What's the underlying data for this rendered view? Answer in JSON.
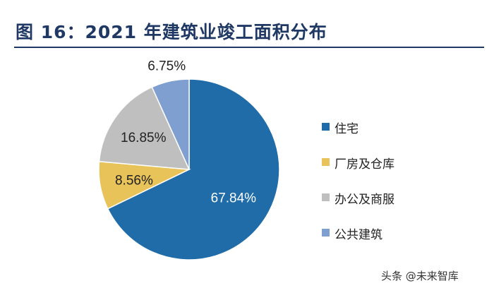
{
  "chart_data": {
    "type": "pie",
    "title": "图 16：2021 年建筑业竣工面积分布",
    "categories": [
      "住宅",
      "厂房及仓库",
      "办公及商服",
      "公共建筑"
    ],
    "values": [
      67.84,
      8.56,
      16.85,
      6.75
    ],
    "labels": [
      "67.84%",
      "8.56%",
      "16.85%",
      "6.75%"
    ],
    "colors": [
      "#1f6ca8",
      "#e8c35a",
      "#bfbfbf",
      "#7f9fd0"
    ],
    "legend_position": "right"
  },
  "watermark": "头条 @未来智库"
}
